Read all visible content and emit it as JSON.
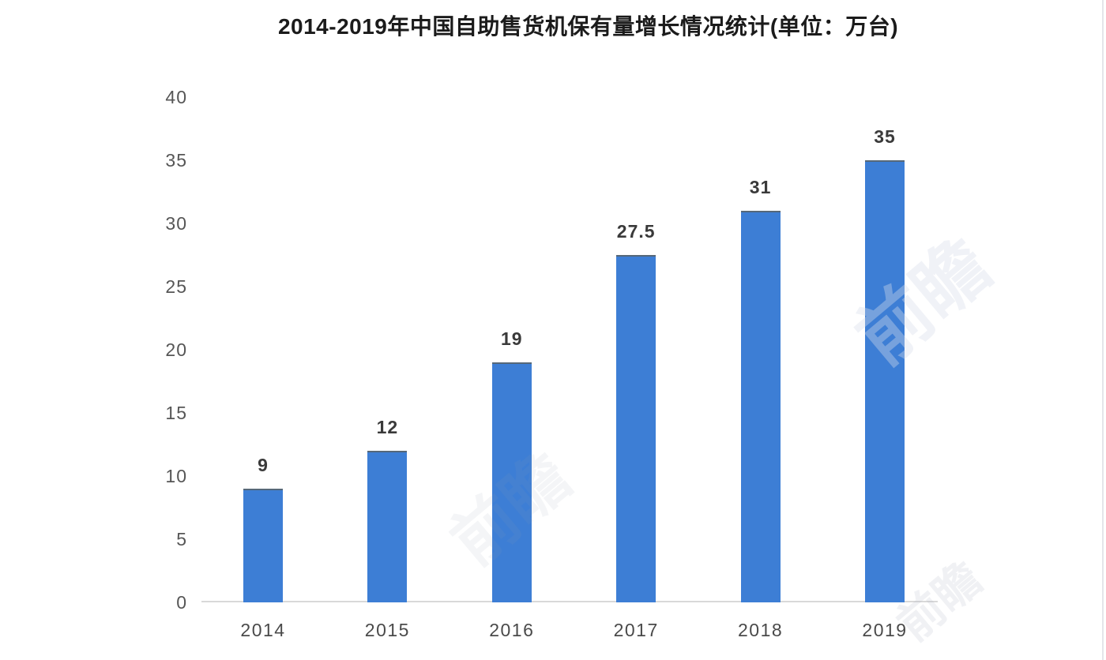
{
  "chart_data": {
    "type": "bar",
    "title": "2014-2019年中国自助售货机保有量增长情况统计(单位：万台)",
    "categories": [
      "2014",
      "2015",
      "2016",
      "2017",
      "2018",
      "2019"
    ],
    "values": [
      9,
      12,
      19,
      27.5,
      31,
      35
    ],
    "value_labels": [
      "9",
      "12",
      "19",
      "27.5",
      "31",
      "35"
    ],
    "xlabel": "",
    "ylabel": "",
    "ylim": [
      0,
      40
    ],
    "yticks": [
      0,
      5,
      10,
      15,
      20,
      25,
      30,
      35,
      40
    ],
    "grid": false,
    "legend_position": "none",
    "colors": {
      "bar": "#3d7ed5",
      "bar_top_edge": "#566879",
      "axis_line": "#d9d9d9",
      "title_text": "#1b1b1b",
      "tick_text": "#565656",
      "category_text": "#4a4a4a",
      "value_text": "#3a3a3a"
    }
  },
  "watermark": {
    "text": "前瞻"
  }
}
